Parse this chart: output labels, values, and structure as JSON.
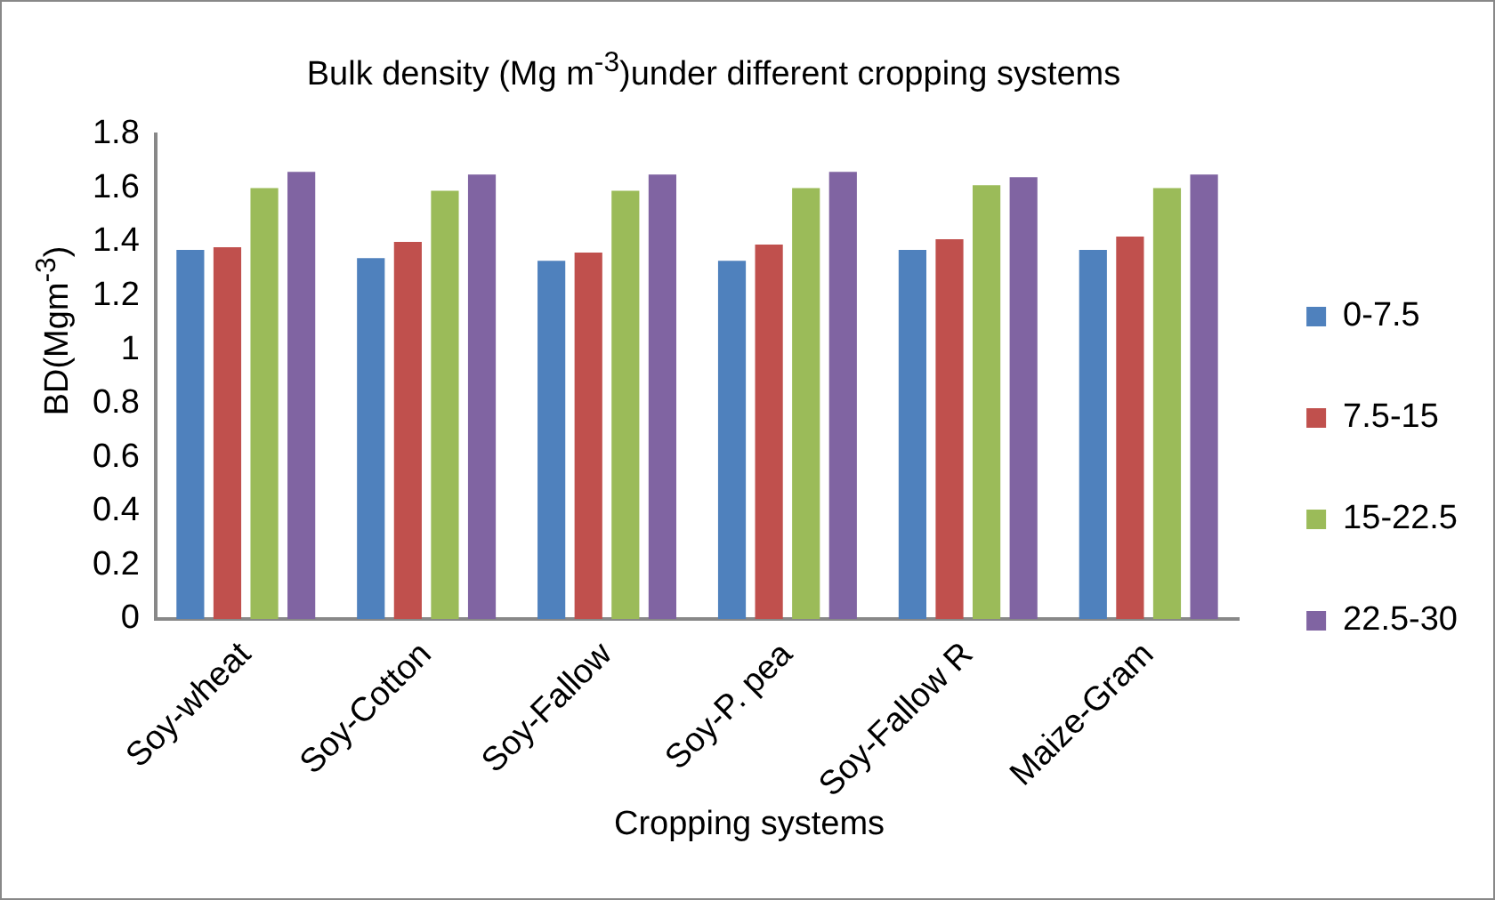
{
  "chart_data": {
    "type": "bar",
    "title": "Bulk density (Mg m$^{-3}$)under different cropping systems",
    "xlabel": "Cropping systems",
    "ylabel": "BD(Mgm$^{-3}$)",
    "categories": [
      "Soy-wheat",
      "Soy-Cotton",
      "Soy-Fallow",
      "Soy-P. pea",
      "Soy-Fallow R",
      "Maize-Gram"
    ],
    "series": [
      {
        "name": "0-7.5",
        "color": "#4f81bd",
        "values": [
          1.37,
          1.34,
          1.33,
          1.33,
          1.37,
          1.37
        ]
      },
      {
        "name": "7.5-15",
        "color": "#c0504d",
        "values": [
          1.38,
          1.4,
          1.36,
          1.39,
          1.41,
          1.42
        ]
      },
      {
        "name": "15-22.5",
        "color": "#9bbb59",
        "values": [
          1.6,
          1.59,
          1.59,
          1.6,
          1.61,
          1.6
        ]
      },
      {
        "name": "22.5-30",
        "color": "#8064a2",
        "values": [
          1.66,
          1.65,
          1.65,
          1.66,
          1.64,
          1.65
        ]
      }
    ],
    "ylim": [
      0,
      1.8
    ],
    "yticks": [
      0,
      0.2,
      0.4,
      0.6,
      0.8,
      1,
      1.2,
      1.4,
      1.6,
      1.8
    ],
    "grid": false,
    "legend": "right"
  }
}
